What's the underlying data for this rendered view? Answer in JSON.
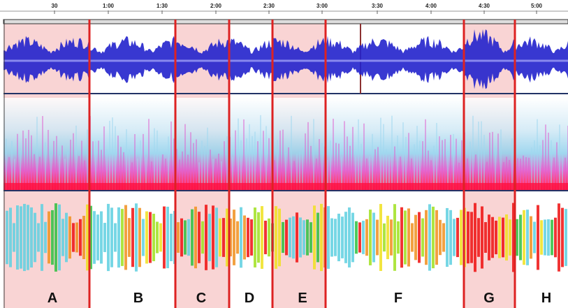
{
  "timeline": {
    "ticks": [
      "30",
      "1:00",
      "1:30",
      "2:00",
      "2:30",
      "3:00",
      "3:30",
      "4:00",
      "4:30",
      "5:00"
    ]
  },
  "sections": [
    "A",
    "B",
    "C",
    "D",
    "E",
    "F",
    "G",
    "H"
  ]
}
